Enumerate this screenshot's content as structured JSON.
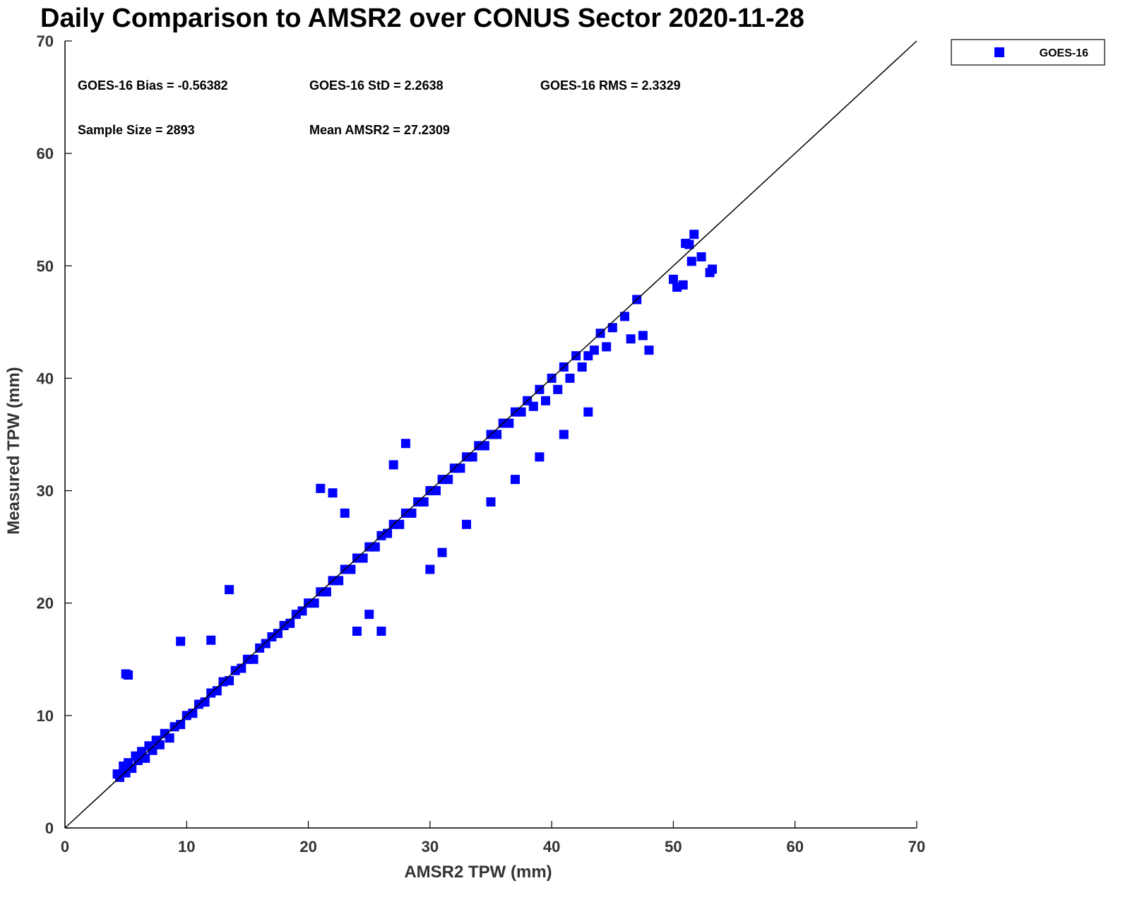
{
  "chart_data": {
    "type": "scatter",
    "title": "Daily Comparison to AMSR2 over CONUS Sector 2020-11-28",
    "xlabel": "AMSR2 TPW (mm)",
    "ylabel": "Measured TPW (mm)",
    "xlim": [
      0,
      70
    ],
    "ylim": [
      0,
      70
    ],
    "xticks": [
      "0",
      "10",
      "20",
      "30",
      "40",
      "50",
      "60",
      "70"
    ],
    "yticks": [
      "0",
      "10",
      "20",
      "30",
      "40",
      "50",
      "60",
      "70"
    ],
    "grid": false,
    "legend_position": "top-right, outside plot",
    "reference_line": "y = x",
    "annotations": [
      "GOES-16 Bias = -0.56382",
      "GOES-16 StD = 2.2638",
      "GOES-16 RMS = 2.3329",
      "Sample Size = 2893",
      "Mean AMSR2 = 27.2309"
    ],
    "series": [
      {
        "name": "GOES-16",
        "color": "#0000ff",
        "marker": "square",
        "x": [
          4.3,
          4.5,
          4.8,
          5.0,
          5.2,
          5.5,
          5.8,
          6.0,
          6.3,
          6.6,
          6.9,
          7.2,
          7.5,
          7.8,
          8.2,
          8.6,
          9.0,
          9.5,
          10.0,
          10.5,
          11.0,
          11.5,
          12.0,
          12.5,
          13.0,
          13.5,
          14.0,
          14.5,
          15.0,
          15.5,
          16.0,
          16.5,
          17.0,
          17.5,
          18.0,
          18.5,
          19.0,
          19.5,
          20.0,
          20.5,
          21.0,
          21.5,
          22.0,
          22.5,
          23.0,
          23.5,
          24.0,
          24.5,
          25.0,
          25.5,
          26.0,
          26.5,
          27.0,
          27.5,
          28.0,
          28.5,
          29.0,
          29.5,
          30.0,
          30.5,
          31.0,
          31.5,
          32.0,
          32.5,
          33.0,
          33.5,
          34.0,
          34.5,
          35.0,
          35.5,
          36.0,
          36.5,
          37.0,
          37.5,
          38.0,
          38.5,
          39.0,
          39.5,
          40.0,
          40.5,
          41.0,
          41.5,
          42.0,
          42.5,
          43.0,
          43.5,
          44.0,
          45.0,
          46.0,
          47.0,
          5.0,
          5.2,
          9.5,
          12.0,
          13.5,
          21.0,
          22.0,
          23.0,
          25.0,
          26.0,
          28.0,
          24.0,
          27.0,
          30.0,
          31.0,
          33.0,
          35.0,
          37.0,
          39.0,
          41.0,
          43.0,
          44.5,
          46.5,
          47.5,
          48.0,
          50.0,
          50.3,
          50.8,
          51.0,
          51.3,
          51.5,
          51.7,
          52.3,
          53.0,
          53.2
        ],
        "y": [
          4.8,
          4.5,
          5.5,
          4.9,
          5.8,
          5.3,
          6.4,
          6.0,
          6.8,
          6.2,
          7.3,
          6.9,
          7.8,
          7.4,
          8.4,
          8.0,
          9.0,
          9.2,
          10.0,
          10.2,
          11.0,
          11.2,
          12.0,
          12.2,
          13.0,
          13.1,
          14.0,
          14.2,
          15.0,
          15.0,
          16.0,
          16.4,
          17.0,
          17.3,
          18.0,
          18.2,
          19.0,
          19.3,
          20.0,
          20.0,
          21.0,
          21.0,
          22.0,
          22.0,
          23.0,
          23.0,
          24.0,
          24.0,
          25.0,
          25.0,
          26.0,
          26.2,
          27.0,
          27.0,
          28.0,
          28.0,
          29.0,
          29.0,
          30.0,
          30.0,
          31.0,
          31.0,
          32.0,
          32.0,
          33.0,
          33.0,
          34.0,
          34.0,
          35.0,
          35.0,
          36.0,
          36.0,
          37.0,
          37.0,
          38.0,
          37.5,
          39.0,
          38.0,
          40.0,
          39.0,
          41.0,
          40.0,
          42.0,
          41.0,
          42.0,
          42.5,
          44.0,
          44.5,
          45.5,
          47.0,
          13.7,
          13.6,
          16.6,
          16.7,
          21.2,
          30.2,
          29.8,
          28.0,
          19.0,
          17.5,
          34.2,
          17.5,
          32.3,
          23.0,
          24.5,
          27.0,
          29.0,
          31.0,
          33.0,
          35.0,
          37.0,
          42.8,
          43.5,
          43.8,
          42.5,
          48.8,
          48.1,
          48.3,
          52.0,
          51.9,
          50.4,
          52.8,
          50.8,
          49.4,
          49.7
        ]
      }
    ]
  }
}
